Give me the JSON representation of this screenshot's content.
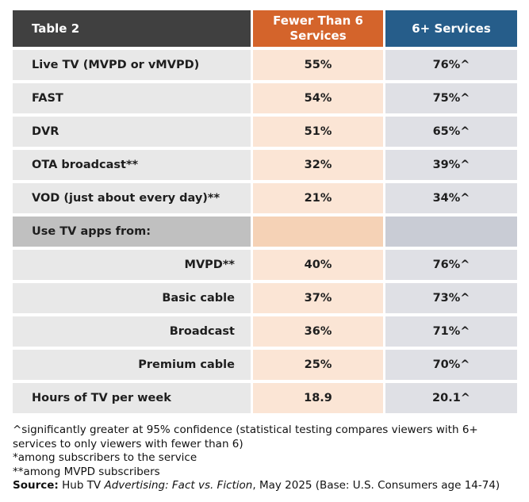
{
  "table": {
    "header": [
      "Table 2",
      "Fewer Than 6 Services",
      "6+ Services"
    ],
    "rows": [
      [
        "Live TV (MVPD or vMVPD)",
        "55%",
        "76%^"
      ],
      [
        "FAST",
        "54%",
        "75%^"
      ],
      [
        "DVR",
        "51%",
        "65%^"
      ],
      [
        "OTA broadcast**",
        "32%",
        "39%^"
      ],
      [
        "VOD (just about every day)**",
        "21%",
        "34%^"
      ],
      [
        "Use TV apps from:"
      ],
      [
        "MVPD**",
        "40%",
        "76%^"
      ],
      [
        "Basic cable",
        "37%",
        "73%^"
      ],
      [
        "Broadcast",
        "36%",
        "71%^"
      ],
      [
        "Premium cable",
        "25%",
        "70%^"
      ],
      [
        "Hours of TV per week",
        "18.9",
        "20.1^"
      ]
    ]
  },
  "notes": [
    "^significantly greater at 95% confidence (statistical testing compares viewers with 6+ services to only viewers with fewer than 6)",
    "*among subscribers to the service",
    "**among MVPD subscribers"
  ],
  "source": {
    "label": "Source:",
    "before": " Hub TV ",
    "title": "Advertising: Fact vs. Fiction",
    "after": ", May 2025 (Base: U.S. Consumers age 14-74)"
  }
}
